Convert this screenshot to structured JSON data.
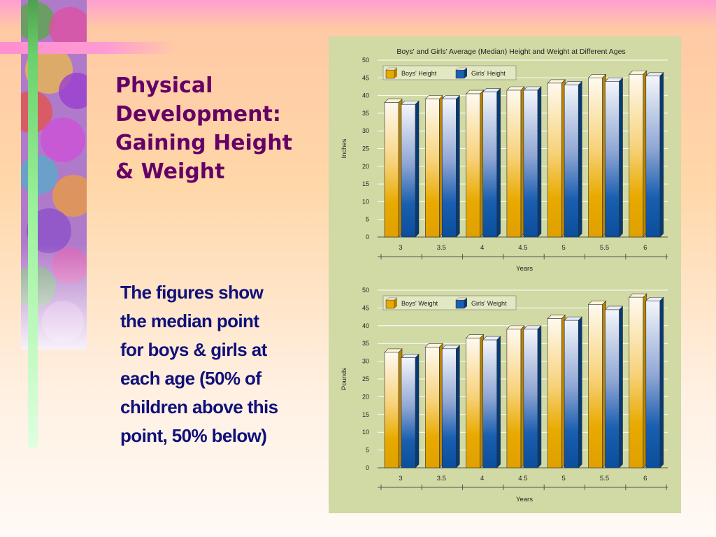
{
  "slide": {
    "title_lines": [
      "Physical",
      "Development:",
      "Gaining Height",
      "& Weight"
    ],
    "body_lines": [
      "The figures show",
      "the median point",
      "for boys & girls at",
      "each age (50% of",
      "children above this",
      "point, 50% below)"
    ]
  },
  "colors": {
    "title": "#660066",
    "body": "#10107a",
    "panel": "#d1d9a4",
    "boys_bar": "#e8aa00",
    "girls_bar": "#0a56a8"
  },
  "chart_header": "Boys' and Girls' Average (Median) Height and Weight at Different Ages",
  "chart_data": [
    {
      "type": "bar",
      "categories": [
        "3",
        "3.5",
        "4",
        "4.5",
        "5",
        "5.5",
        "6"
      ],
      "series": [
        {
          "name": "Boys' Height",
          "values": [
            38,
            39,
            40.5,
            41.5,
            43.5,
            45,
            46
          ]
        },
        {
          "name": "Girls' Height",
          "values": [
            37.5,
            39,
            41,
            41.5,
            43,
            44,
            45.5
          ]
        }
      ],
      "xlabel": "Years",
      "ylabel": "Inches",
      "ylim": [
        0,
        50
      ],
      "yticks": [
        0,
        5,
        10,
        15,
        20,
        25,
        30,
        35,
        40,
        45,
        50
      ],
      "grid": true,
      "legend": "top-left"
    },
    {
      "type": "bar",
      "categories": [
        "3",
        "3.5",
        "4",
        "4.5",
        "5",
        "5.5",
        "6"
      ],
      "series": [
        {
          "name": "Boys' Weight",
          "values": [
            32.5,
            34,
            36.5,
            39,
            42,
            46,
            48
          ]
        },
        {
          "name": "Girls' Weight",
          "values": [
            31,
            33.5,
            36,
            39,
            41.5,
            44.5,
            47
          ]
        }
      ],
      "xlabel": "Years",
      "ylabel": "Pounds",
      "ylim": [
        0,
        50
      ],
      "yticks": [
        0,
        5,
        10,
        15,
        20,
        25,
        30,
        35,
        40,
        45,
        50
      ],
      "grid": true,
      "legend": "top-left"
    }
  ]
}
